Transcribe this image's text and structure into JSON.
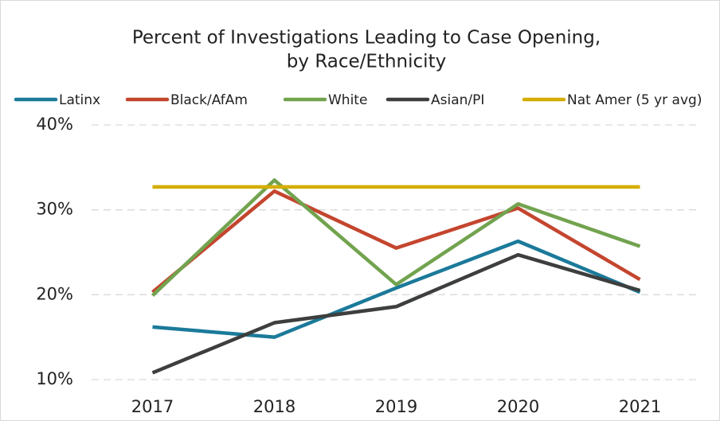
{
  "chart_data": {
    "type": "line",
    "title": [
      "Percent of Investigations Leading to Case Opening,",
      "by Race/Ethnicity"
    ],
    "categories": [
      "2017",
      "2018",
      "2019",
      "2020",
      "2021"
    ],
    "series": [
      {
        "name": "Latinx",
        "color": "#1b7a9a",
        "values": [
          16.2,
          15.0,
          20.8,
          26.3,
          20.3
        ]
      },
      {
        "name": "Black/AfAm",
        "color": "#c4452e",
        "values": [
          20.3,
          32.2,
          25.5,
          30.2,
          21.8
        ]
      },
      {
        "name": "White",
        "color": "#72a34f",
        "values": [
          19.9,
          33.5,
          21.2,
          30.7,
          25.7
        ]
      },
      {
        "name": "Asian/PI",
        "color": "#3d3f3e",
        "values": [
          10.8,
          16.7,
          18.6,
          24.7,
          20.5
        ]
      },
      {
        "name": "Nat Amer (5 yr avg)",
        "color": "#d4ad00",
        "values": [
          32.7,
          32.7,
          32.7,
          32.7,
          32.7
        ]
      }
    ],
    "ylim": [
      10,
      40
    ],
    "yticks": [
      {
        "value": 10,
        "label": "10%"
      },
      {
        "value": 20,
        "label": "20%"
      },
      {
        "value": 30,
        "label": "30%"
      },
      {
        "value": 40,
        "label": "40%"
      }
    ],
    "grid": true
  }
}
